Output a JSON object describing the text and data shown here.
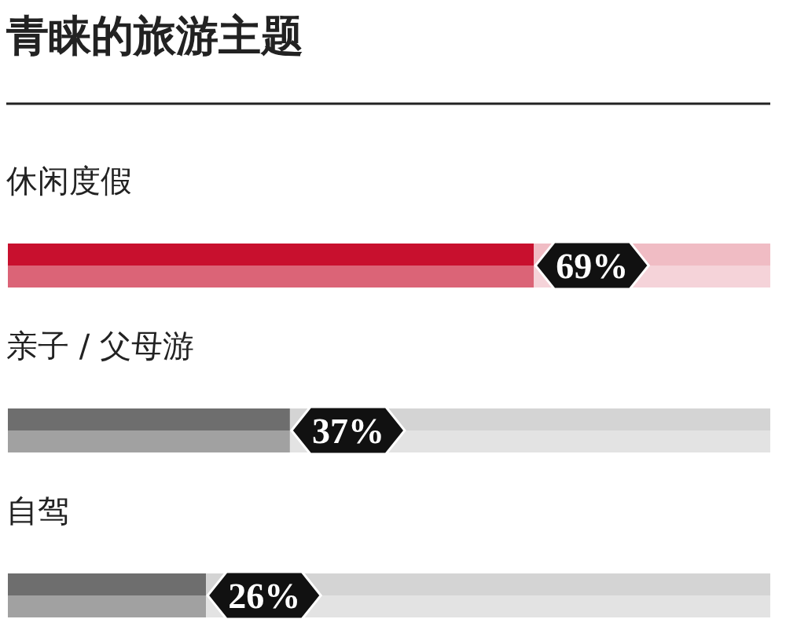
{
  "chart_data": {
    "type": "bar",
    "orientation": "horizontal",
    "stacked": true,
    "title": "青睐的旅游主题",
    "categories": [
      "休闲度假",
      "亲子 / 父母游",
      "自驾"
    ],
    "series": [
      {
        "colors": [
          "#c8102e",
          "#6e6e6e",
          "#6e6e6e"
        ],
        "values": [
          69,
          37,
          26
        ],
        "value_labels": [
          "69%",
          "37%",
          "26%"
        ]
      },
      {
        "colors": [
          "#f0bcc4",
          "#d4d4d4",
          "#d4d4d4"
        ],
        "values": [
          31,
          63,
          74
        ]
      }
    ]
  }
}
